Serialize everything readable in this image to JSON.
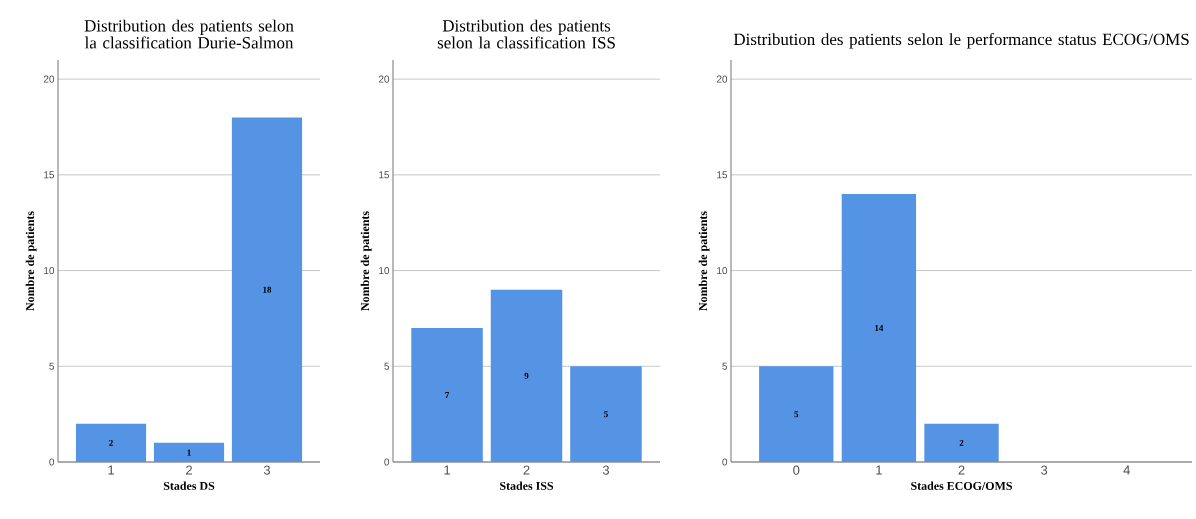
{
  "chart_data": [
    {
      "type": "bar",
      "title": "Distribution des patients selon la classification Durie-Salmon",
      "xlabel": "Stades DS",
      "ylabel": "Nombre de patients",
      "categories": [
        "1",
        "2",
        "3"
      ],
      "values": [
        2,
        1,
        18
      ],
      "color": "#5594e4",
      "ylim": [
        0,
        21
      ],
      "yticks": [
        0,
        5,
        10,
        15,
        20
      ],
      "grid": "y",
      "data_labels": true
    },
    {
      "type": "bar",
      "title": "Distribution des patients selon la classification ISS",
      "xlabel": "Stades ISS",
      "ylabel": "Nombre de patients",
      "categories": [
        "1",
        "2",
        "3"
      ],
      "values": [
        7,
        9,
        5
      ],
      "color": "#5594e4",
      "ylim": [
        0,
        21
      ],
      "yticks": [
        0,
        5,
        10,
        15,
        20
      ],
      "grid": "y",
      "data_labels": true
    },
    {
      "type": "bar",
      "title": "Distribution des patients selon le performance status ECOG/OMS",
      "xlabel": "Stades ECOG/OMS",
      "ylabel": "Nombre de patients",
      "categories": [
        "0",
        "1",
        "2",
        "3",
        "4"
      ],
      "values": [
        5,
        14,
        2,
        0,
        0
      ],
      "value_labels": [
        "5",
        "14",
        "2",
        null,
        null
      ],
      "color": "#5594e4",
      "ylim": [
        0,
        21
      ],
      "yticks": [
        0,
        5,
        10,
        15,
        20
      ],
      "grid": "y"
    }
  ]
}
